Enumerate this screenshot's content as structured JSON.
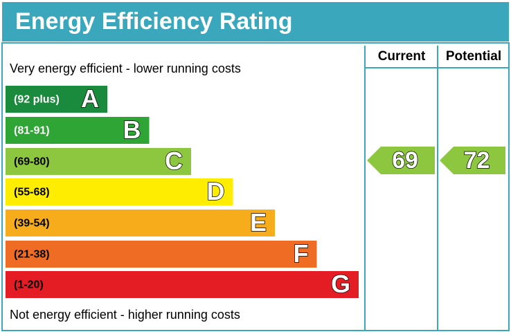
{
  "title": "Energy Efficiency Rating",
  "top_label": "Very energy efficient - lower running costs",
  "bottom_label": "Not energy efficient - higher running costs",
  "columns": [
    "Current",
    "Potential"
  ],
  "bands": [
    {
      "range": "(92 plus)",
      "letter": "A",
      "color": "#1a8a3c",
      "text_color": "#ffffff"
    },
    {
      "range": "(81-91)",
      "letter": "B",
      "color": "#2ea535",
      "text_color": "#ffffff"
    },
    {
      "range": "(69-80)",
      "letter": "C",
      "color": "#8dc63f",
      "text_color": "#000000"
    },
    {
      "range": "(55-68)",
      "letter": "D",
      "color": "#ffed00",
      "text_color": "#000000"
    },
    {
      "range": "(39-54)",
      "letter": "E",
      "color": "#f7ac1c",
      "text_color": "#000000"
    },
    {
      "range": "(21-38)",
      "letter": "F",
      "color": "#ef6c24",
      "text_color": "#000000"
    },
    {
      "range": "(1-20)",
      "letter": "G",
      "color": "#e31d23",
      "text_color": "#000000"
    }
  ],
  "current": {
    "value": "69",
    "color": "#8dc63f"
  },
  "potential": {
    "value": "72",
    "color": "#8dc63f"
  }
}
